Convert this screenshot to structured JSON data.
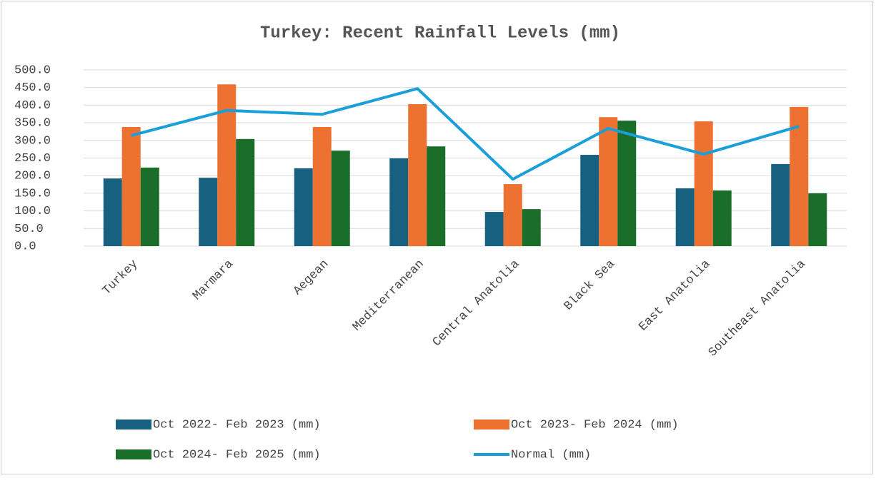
{
  "chart_data": {
    "type": "bar",
    "title": "Turkey: Recent Rainfall Levels (mm)",
    "categories": [
      "Turkey",
      "Marmara",
      "Aegean",
      "Mediterranean",
      "Central Anatolia",
      "Black Sea",
      "East Anatolia",
      "Southeast Anatolia"
    ],
    "series": [
      {
        "name": "Oct 2022- Feb 2023 (mm)",
        "color": "#17607f",
        "type": "bar",
        "values": [
          192,
          194,
          221,
          249,
          97,
          259,
          164,
          233
        ]
      },
      {
        "name": "Oct 2023- Feb 2024 (mm)",
        "color": "#ed7131",
        "type": "bar",
        "values": [
          338,
          459,
          338,
          403,
          176,
          366,
          354,
          395
        ]
      },
      {
        "name": "Oct 2024- Feb 2025 (mm)",
        "color": "#1b6d2a",
        "type": "bar",
        "values": [
          223,
          304,
          271,
          283,
          105,
          356,
          158,
          150
        ]
      },
      {
        "name": "Normal (mm)",
        "color": "#1a9fd9",
        "type": "line",
        "values": [
          314,
          385,
          374,
          447,
          190,
          334,
          261,
          340
        ]
      }
    ],
    "ylim": [
      0,
      500
    ],
    "yticks": [
      {
        "value": 0,
        "label": "0.0"
      },
      {
        "value": 50,
        "label": "50.0"
      },
      {
        "value": 100,
        "label": "100.0"
      },
      {
        "value": 150,
        "label": "150.0"
      },
      {
        "value": 200,
        "label": "200.0"
      },
      {
        "value": 250,
        "label": "250.0"
      },
      {
        "value": 300,
        "label": "300.0"
      },
      {
        "value": 350,
        "label": "350.0"
      },
      {
        "value": 400,
        "label": "400.0"
      },
      {
        "value": 450,
        "label": "450.0"
      },
      {
        "value": 500,
        "label": "500.0"
      }
    ],
    "grid": true,
    "legend": "bottom"
  }
}
